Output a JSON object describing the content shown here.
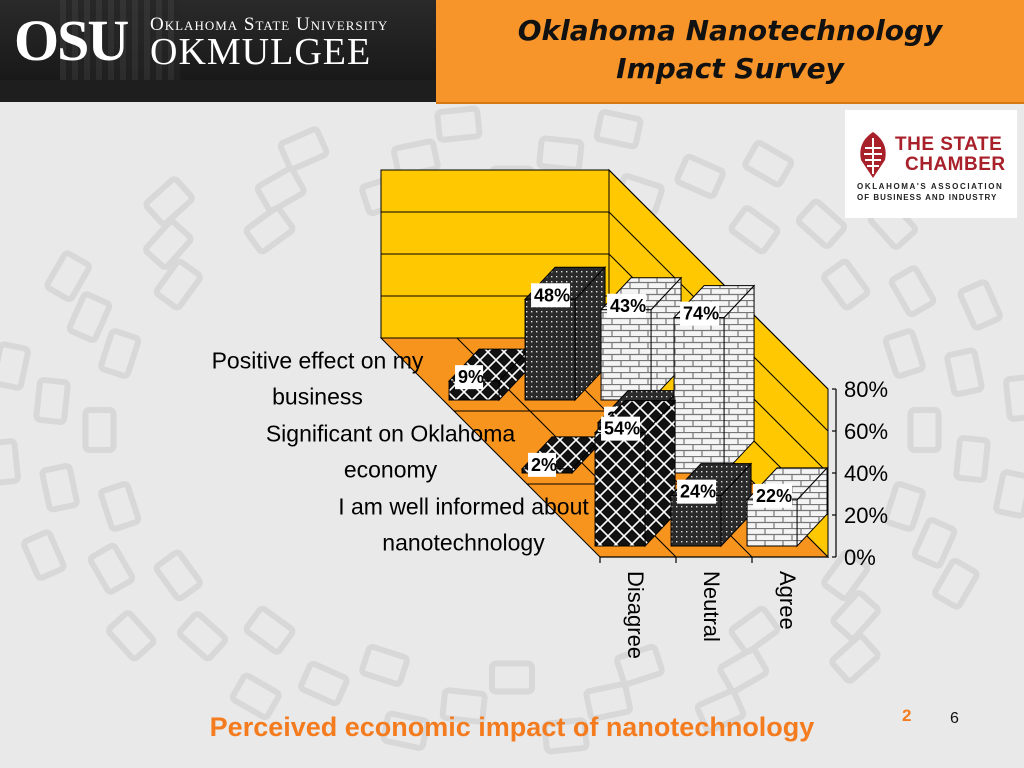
{
  "header": {
    "logo_mark": "OSU",
    "university": "Oklahoma State University",
    "campus": "OKMULGEE",
    "title_line1": "Oklahoma Nanotechnology",
    "title_line2": "Impact Survey"
  },
  "partner_logo": {
    "line1": "THE STATE",
    "line2": "CHAMBER",
    "tagline1": "OKLAHOMA'S ASSOCIATION",
    "tagline2": "OF BUSINESS AND INDUSTRY"
  },
  "colors": {
    "header_orange": "#f7952b",
    "wall": "#ffc800",
    "floor": "#f7941d",
    "caption": "#f47b1e",
    "chamber_red": "#a8202a"
  },
  "chart_data": {
    "type": "bar",
    "style": "3d",
    "categories": [
      "I am well informed about nanotechnology",
      "Significant on Oklahoma economy",
      "Positive effect on my business"
    ],
    "series": [
      {
        "name": "Disagree",
        "values": [
          54,
          2,
          9
        ]
      },
      {
        "name": "Neutral",
        "values": [
          24,
          24,
          48
        ]
      },
      {
        "name": "Agree",
        "values": [
          22,
          74,
          43
        ]
      }
    ],
    "value_labels": [
      [
        "54%",
        "2%",
        "9%"
      ],
      [
        "24%",
        "24%",
        "48%"
      ],
      [
        "22%",
        "74%",
        "43%"
      ]
    ],
    "category_labels": [
      [
        "I am well informed about",
        "nanotechnology"
      ],
      [
        "Significant on Oklahoma",
        "economy"
      ],
      [
        "Positive effect on my",
        "business"
      ]
    ],
    "yticks": [
      "0%",
      "20%",
      "40%",
      "60%",
      "80%"
    ],
    "ylim": [
      0,
      80
    ],
    "grid": true
  },
  "caption": "Perceived economic impact of nanotechnology",
  "caption_superscript": "2",
  "page_number": "6"
}
